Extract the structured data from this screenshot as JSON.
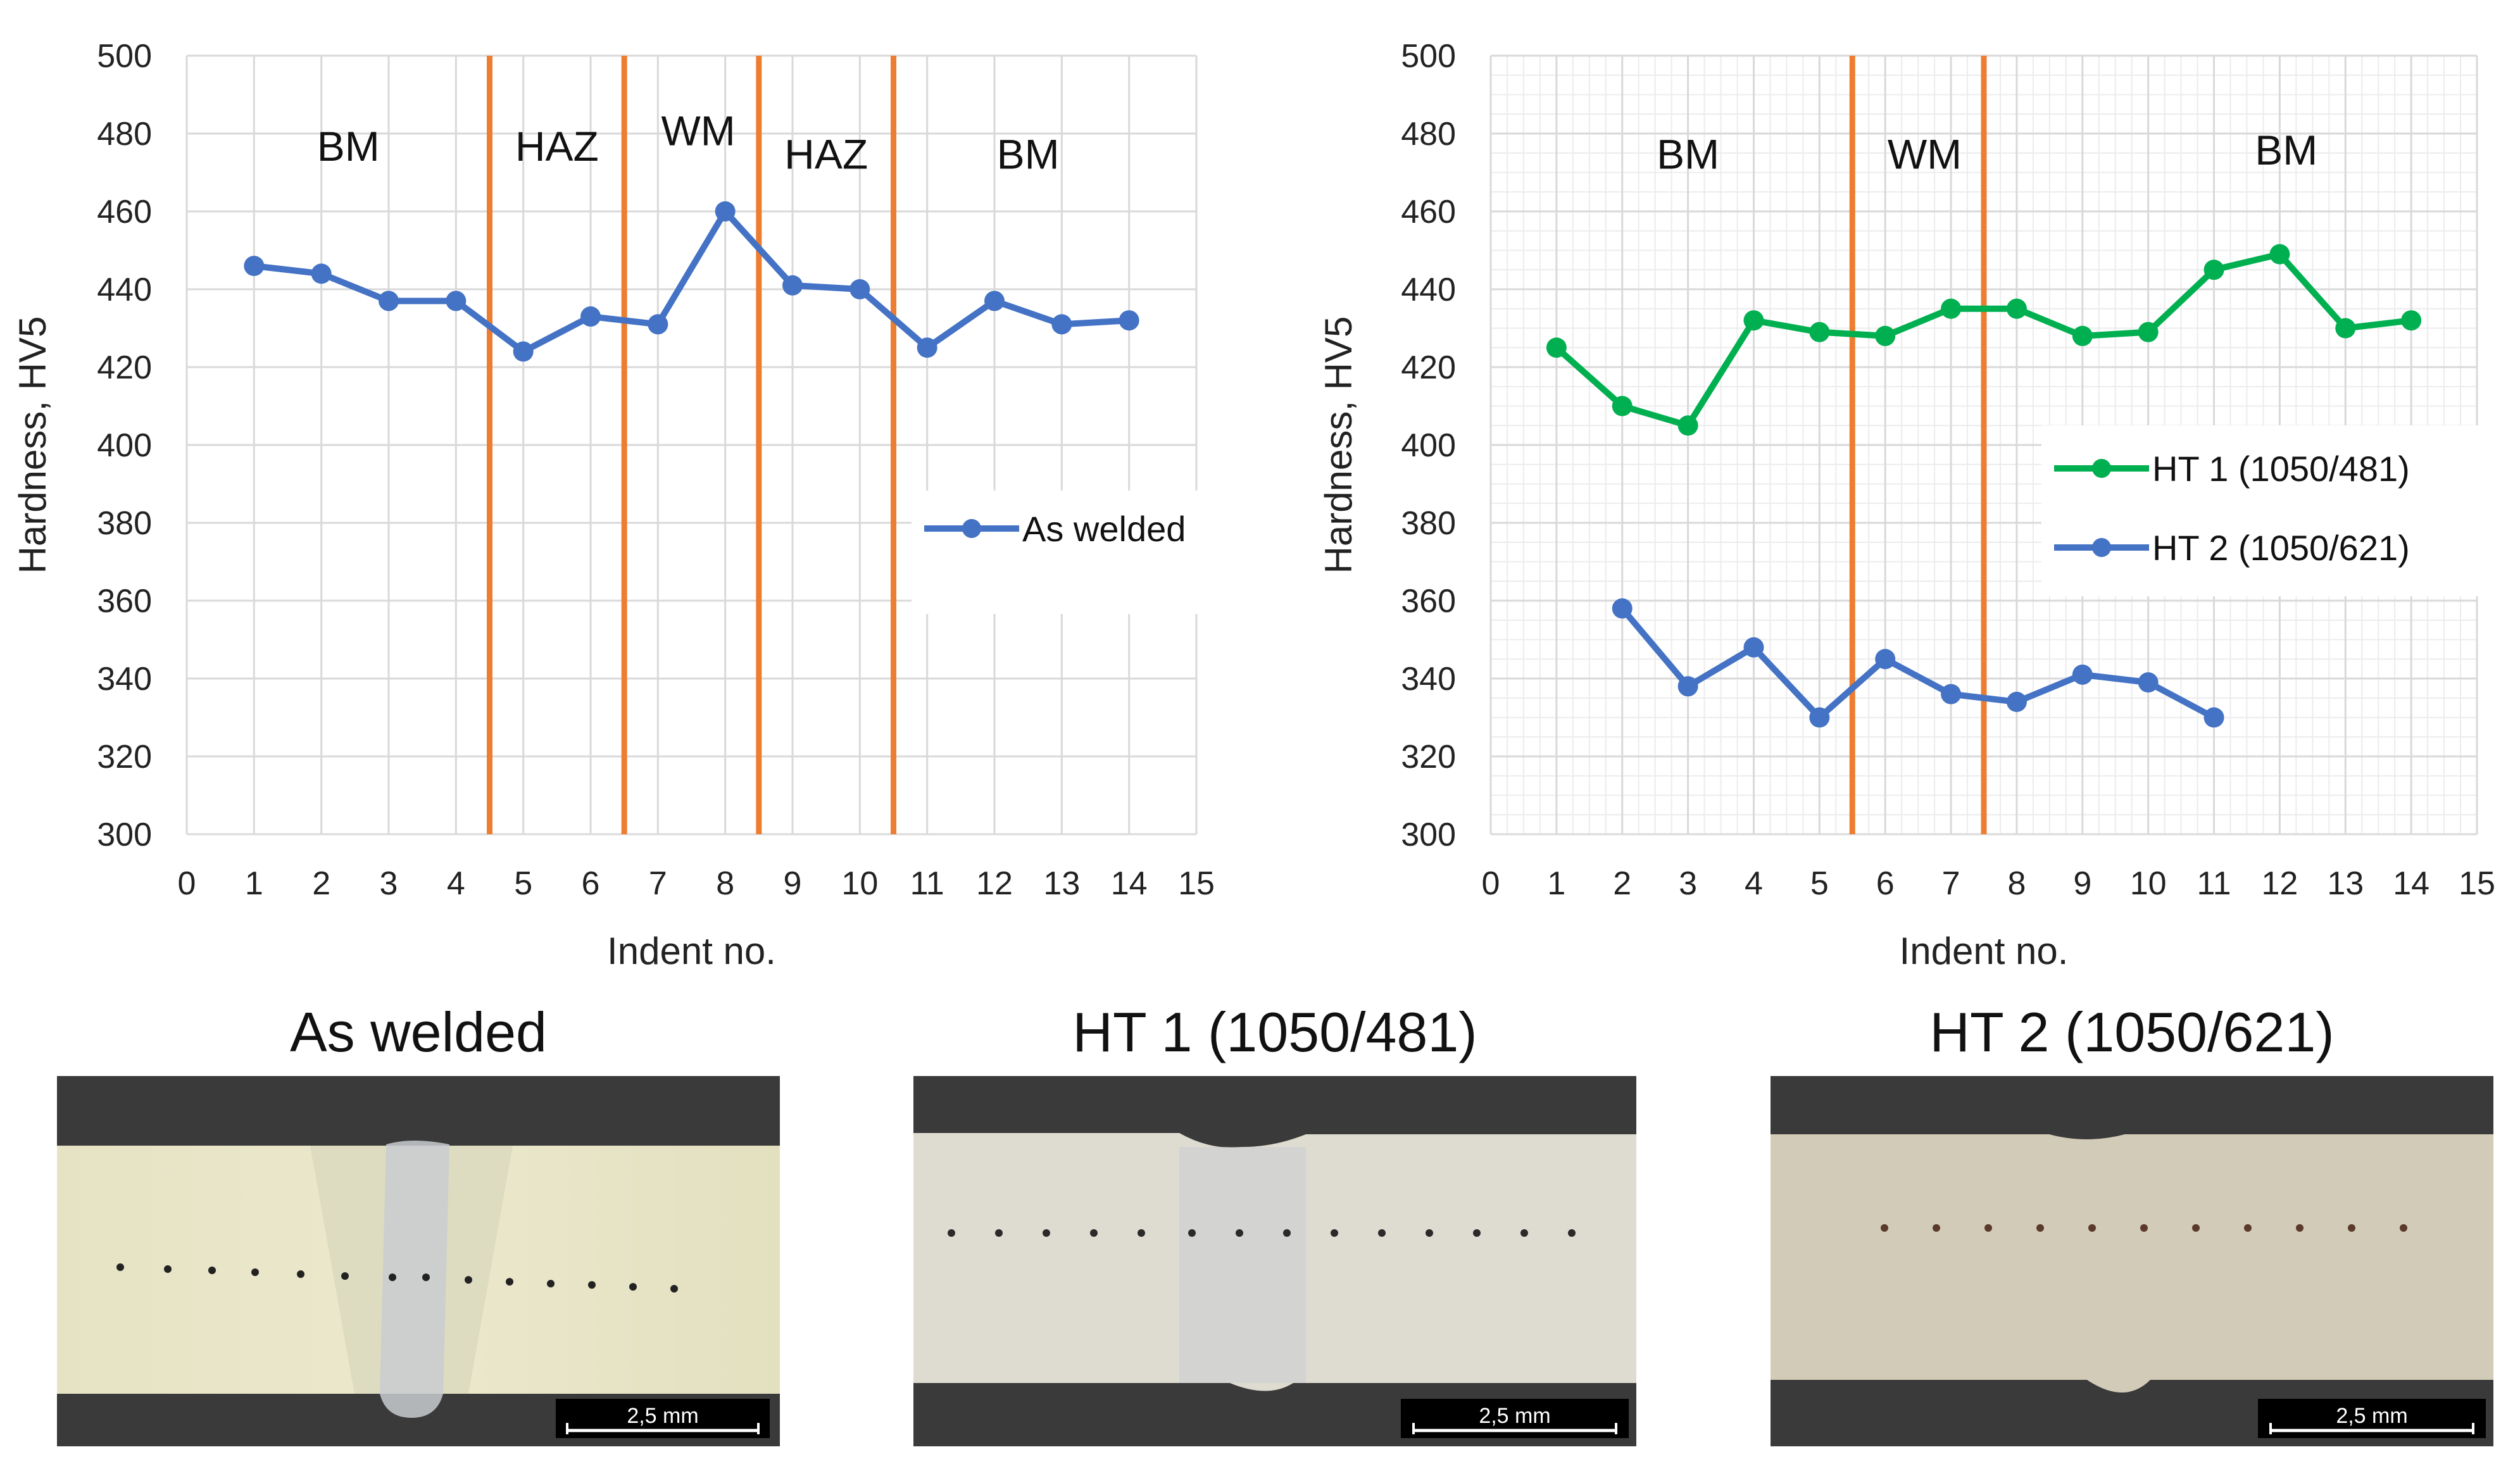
{
  "chart_data": [
    {
      "type": "line",
      "title": "",
      "xlabel": "Indent no.",
      "ylabel": "Hardness, HV5",
      "xlim": [
        0,
        15
      ],
      "ylim": [
        300,
        500
      ],
      "xticks": [
        "0",
        "1",
        "2",
        "3",
        "4",
        "5",
        "6",
        "7",
        "8",
        "9",
        "10",
        "11",
        "12",
        "13",
        "14",
        "15"
      ],
      "yticks": [
        "300",
        "320",
        "340",
        "360",
        "380",
        "400",
        "420",
        "440",
        "460",
        "480",
        "500"
      ],
      "grid": true,
      "legend_position": "right",
      "zone_boundaries": [
        4.5,
        6.5,
        8.5,
        10.5
      ],
      "zones": [
        {
          "label": "BM",
          "x": 2.4,
          "y": 473
        },
        {
          "label": "HAZ",
          "x": 5.5,
          "y": 473
        },
        {
          "label": "WM",
          "x": 7.6,
          "y": 477
        },
        {
          "label": "HAZ",
          "x": 9.5,
          "y": 471
        },
        {
          "label": "BM",
          "x": 12.5,
          "y": 471
        }
      ],
      "series": [
        {
          "name": "As welded",
          "color": "#4472C4",
          "x": [
            1,
            2,
            3,
            4,
            5,
            6,
            7,
            8,
            9,
            10,
            11,
            12,
            13,
            14
          ],
          "y": [
            446,
            444,
            437,
            437,
            424,
            433,
            431,
            460,
            441,
            440,
            425,
            437,
            431,
            432
          ]
        }
      ]
    },
    {
      "type": "line",
      "title": "",
      "xlabel": "Indent no.",
      "ylabel": "Hardness, HV5",
      "xlim": [
        0,
        15
      ],
      "ylim": [
        300,
        500
      ],
      "xticks": [
        "0",
        "1",
        "2",
        "3",
        "4",
        "5",
        "6",
        "7",
        "8",
        "9",
        "10",
        "11",
        "12",
        "13",
        "14",
        "15"
      ],
      "yticks": [
        "300",
        "320",
        "340",
        "360",
        "380",
        "400",
        "420",
        "440",
        "460",
        "480",
        "500"
      ],
      "grid": true,
      "minor_grid": true,
      "legend_position": "right",
      "zone_boundaries": [
        5.5,
        7.5
      ],
      "zones": [
        {
          "label": "BM",
          "x": 3.0,
          "y": 471
        },
        {
          "label": "WM",
          "x": 6.6,
          "y": 471
        },
        {
          "label": "BM",
          "x": 12.1,
          "y": 472
        }
      ],
      "series": [
        {
          "name": "HT 1 (1050/481)",
          "color": "#00B050",
          "x": [
            1,
            2,
            3,
            4,
            5,
            6,
            7,
            8,
            9,
            10,
            11,
            12,
            13,
            14
          ],
          "y": [
            425,
            410,
            405,
            432,
            429,
            428,
            435,
            435,
            428,
            429,
            445,
            449,
            430,
            432
          ]
        },
        {
          "name": "HT 2 (1050/621)",
          "color": "#4472C4",
          "x": [
            2,
            3,
            4,
            5,
            6,
            7,
            8,
            9,
            10,
            11
          ],
          "y": [
            358,
            338,
            348,
            330,
            345,
            336,
            334,
            341,
            339,
            330
          ]
        }
      ]
    }
  ],
  "photos": {
    "as_welded": {
      "title": "As welded",
      "scale": "2,5 mm"
    },
    "ht1": {
      "title": "HT 1 (1050/481)",
      "scale": "2,5 mm"
    },
    "ht2": {
      "title": "HT 2 (1050/621)",
      "scale": "2,5 mm"
    }
  },
  "colors": {
    "zone_line": "#ED7D31",
    "grid": "#d9d9d9",
    "axis_text": "#222222"
  }
}
